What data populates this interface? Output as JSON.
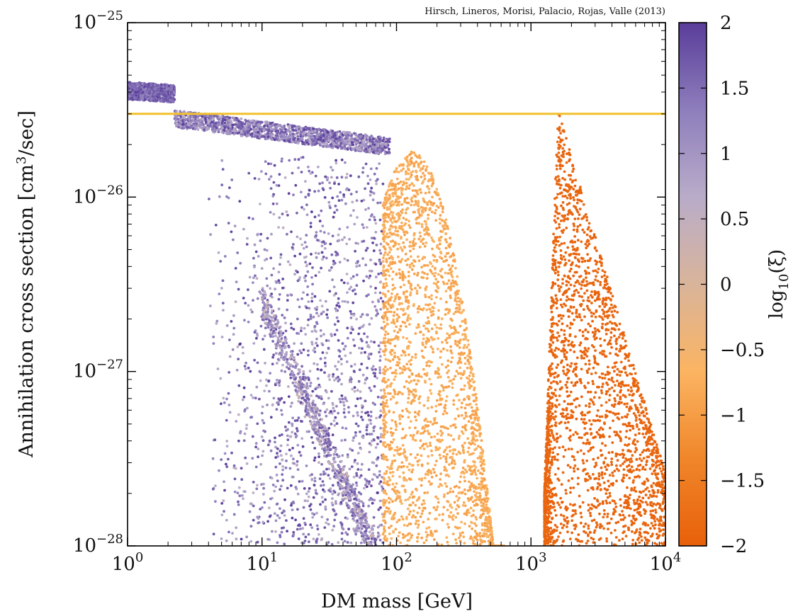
{
  "credit": "Hirsch, Lineros, Morisi, Palacio, Rojas, Valle (2013)",
  "chart_data": {
    "type": "scatter",
    "title": "",
    "xlabel": "DM mass [GeV]",
    "ylabel": "Annihilation cross section [cm3/sec]",
    "ylabel_parts": {
      "pre": "Annihilation cross section [cm",
      "sup": "3",
      "post": "/sec]"
    },
    "xscale": "log",
    "yscale": "log",
    "xlim": [
      1,
      10000
    ],
    "ylim": [
      1e-28,
      1e-25
    ],
    "x_ticks": [
      {
        "value": 1,
        "base": "10",
        "exp": "0"
      },
      {
        "value": 10,
        "base": "10",
        "exp": "1"
      },
      {
        "value": 100,
        "base": "10",
        "exp": "2"
      },
      {
        "value": 1000,
        "base": "10",
        "exp": "3"
      },
      {
        "value": 10000,
        "base": "10",
        "exp": "4"
      }
    ],
    "y_ticks": [
      {
        "value": 1e-25,
        "base": "10",
        "exp": "−25"
      },
      {
        "value": 1e-26,
        "base": "10",
        "exp": "−26"
      },
      {
        "value": 1e-27,
        "base": "10",
        "exp": "−27"
      },
      {
        "value": 1e-28,
        "base": "10",
        "exp": "−28"
      }
    ],
    "grid": false,
    "reference_line": {
      "y": 3e-26,
      "color": "#f2c12e"
    },
    "colorbar": {
      "label": "log10(ξ)",
      "label_parts": {
        "pre": "log",
        "sub": "10",
        "post": "(ξ)"
      },
      "range": [
        -2,
        2
      ],
      "ticks": [
        {
          "value": 2,
          "label": "2"
        },
        {
          "value": 1.5,
          "label": "1.5"
        },
        {
          "value": 1,
          "label": "1"
        },
        {
          "value": 0.5,
          "label": "0.5"
        },
        {
          "value": 0,
          "label": "0"
        },
        {
          "value": -0.5,
          "label": "−0.5"
        },
        {
          "value": -1,
          "label": "−1"
        },
        {
          "value": -1.5,
          "label": "−1.5"
        },
        {
          "value": -2,
          "label": "−2"
        }
      ],
      "colors": [
        "#e8600a",
        "#f0862a",
        "#fbb462",
        "#d9b49a",
        "#b9acc9",
        "#8e7ebc",
        "#5a3d9a"
      ]
    },
    "regions": [
      {
        "name": "plateau",
        "color_range": [
          1.2,
          2.0
        ],
        "log_mass_range": [
          0,
          0.35
        ],
        "log_sigma_range": [
          -25.45,
          -25.33
        ],
        "count": 700
      },
      {
        "name": "band",
        "color_range": [
          0.6,
          2.0
        ],
        "log_mass_range": [
          0.35,
          1.95
        ],
        "log_sigma_range": [
          -25.72,
          -25.55
        ],
        "count": 1500
      },
      {
        "name": "purple-spread",
        "color_range": [
          0.5,
          2.0
        ],
        "log_mass_range": [
          0.6,
          1.9
        ],
        "log_sigma_range": [
          -28.0,
          -25.7
        ],
        "count": 1500
      },
      {
        "name": "diagonal",
        "color_range": [
          0.3,
          1.8
        ],
        "log_mass_range": [
          1.0,
          1.85
        ],
        "log_sigma_range": [
          -28.0,
          -26.6
        ],
        "count": 700
      },
      {
        "name": "light-orange",
        "color_range": [
          -1.0,
          -0.6
        ],
        "log_mass_range": [
          1.9,
          2.8
        ],
        "log_sigma_range": [
          -28.0,
          -25.74
        ],
        "count": 2400
      },
      {
        "name": "dark-orange",
        "color_range": [
          -2.0,
          -1.8
        ],
        "log_mass_range": [
          3.1,
          4.0
        ],
        "log_sigma_range": [
          -28.0,
          -25.5
        ],
        "count": 2400
      }
    ]
  }
}
